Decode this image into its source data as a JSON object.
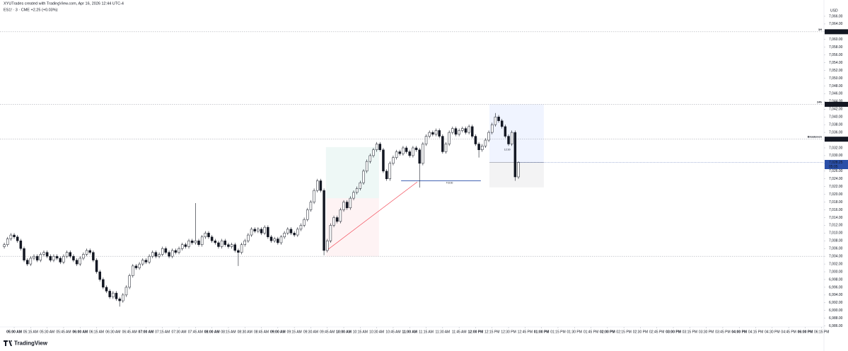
{
  "header": {
    "author_line": "XYUTrades created with TradingView.com, Apr 16, 2026 12:44 UTC-4",
    "symbol_line": "ES1! · 3 · CME  +2.25 (+0.03%)"
  },
  "footer": {
    "brand": "TradingView"
  },
  "chart_data": {
    "type": "candlestick",
    "currency": "USD",
    "colors": {
      "up": "#ffffff",
      "down": "#131722",
      "outline": "#131722",
      "current": "#2a4fa8",
      "level": "#131722"
    },
    "xlim": [
      -1.3,
      248.7
    ],
    "ylim": [
      6985.75,
      7070.2
    ],
    "yticks": [
      {
        "value": 7066,
        "label": "7,066.00"
      },
      {
        "value": 7064,
        "label": "7,064.00"
      },
      {
        "value": 7062,
        "label": "7,062.00"
      },
      {
        "value": 7060,
        "label": "7,060.00"
      },
      {
        "value": 7058,
        "label": "7,058.00"
      },
      {
        "value": 7056,
        "label": "7,056.00"
      },
      {
        "value": 7054,
        "label": "7,054.00"
      },
      {
        "value": 7052,
        "label": "7,052.00"
      },
      {
        "value": 7050,
        "label": "7,050.00"
      },
      {
        "value": 7048,
        "label": "7,048.00"
      },
      {
        "value": 7046,
        "label": "7,046.00"
      },
      {
        "value": 7044,
        "label": "7,044.00"
      },
      {
        "value": 7042,
        "label": "7,042.00"
      },
      {
        "value": 7040,
        "label": "7,040.00"
      },
      {
        "value": 7038,
        "label": "7,038.00"
      },
      {
        "value": 7036,
        "label": "7,036.00"
      },
      {
        "value": 7034,
        "label": "7,034.00"
      },
      {
        "value": 7032,
        "label": "7,032.00"
      },
      {
        "value": 7030,
        "label": "7,030.00"
      },
      {
        "value": 7028,
        "label": "7,028.00"
      },
      {
        "value": 7026,
        "label": "7,026.00"
      },
      {
        "value": 7024,
        "label": "7,024.00"
      },
      {
        "value": 7022,
        "label": "7,022.00"
      },
      {
        "value": 7020,
        "label": "7,020.00"
      },
      {
        "value": 7018,
        "label": "7,018.00"
      },
      {
        "value": 7016,
        "label": "7,016.00"
      },
      {
        "value": 7014,
        "label": "7,014.00"
      },
      {
        "value": 7012,
        "label": "7,012.00"
      },
      {
        "value": 7010,
        "label": "7,010.00"
      },
      {
        "value": 7008,
        "label": "7,008.00"
      },
      {
        "value": 7006,
        "label": "7,006.00"
      },
      {
        "value": 7004,
        "label": "7,004.00"
      },
      {
        "value": 7002,
        "label": "7,002.00"
      },
      {
        "value": 7000,
        "label": "7,000.00"
      },
      {
        "value": 6998,
        "label": "6,998.00"
      },
      {
        "value": 6996,
        "label": "6,996.00"
      },
      {
        "value": 6994,
        "label": "6,994.00"
      },
      {
        "value": 6992,
        "label": "6,992.00"
      },
      {
        "value": 6990,
        "label": "6,990.00"
      },
      {
        "value": 6988,
        "label": "6,988.00"
      },
      {
        "value": 6986,
        "label": "6,986.00"
      }
    ],
    "xticks": [
      {
        "value": 3,
        "label": "05:00 AM"
      },
      {
        "value": 8,
        "label": "05:15 AM"
      },
      {
        "value": 13,
        "label": "05:30 AM"
      },
      {
        "value": 18,
        "label": "05:45 AM"
      },
      {
        "value": 23,
        "label": "06:00 AM"
      },
      {
        "value": 28,
        "label": "06:15 AM"
      },
      {
        "value": 33,
        "label": "06:30 AM"
      },
      {
        "value": 38,
        "label": "06:45 AM"
      },
      {
        "value": 43,
        "label": "07:00 AM"
      },
      {
        "value": 48,
        "label": "07:15 AM"
      },
      {
        "value": 53,
        "label": "07:30 AM"
      },
      {
        "value": 58,
        "label": "07:45 AM"
      },
      {
        "value": 63,
        "label": "08:00 AM"
      },
      {
        "value": 68,
        "label": "08:15 AM"
      },
      {
        "value": 73,
        "label": "08:30 AM"
      },
      {
        "value": 78,
        "label": "08:45 AM"
      },
      {
        "value": 83,
        "label": "09:00 AM"
      },
      {
        "value": 88,
        "label": "09:15 AM"
      },
      {
        "value": 93,
        "label": "09:30 AM"
      },
      {
        "value": 98,
        "label": "09:45 AM"
      },
      {
        "value": 103,
        "label": "10:00 AM"
      },
      {
        "value": 108,
        "label": "10:15 AM"
      },
      {
        "value": 113,
        "label": "10:30 AM"
      },
      {
        "value": 118,
        "label": "10:45 AM"
      },
      {
        "value": 123,
        "label": "11:00 AM"
      },
      {
        "value": 128,
        "label": "11:15 AM"
      },
      {
        "value": 133,
        "label": "11:30 AM"
      },
      {
        "value": 138,
        "label": "11:45 AM"
      },
      {
        "value": 143,
        "label": "12:00 PM"
      },
      {
        "value": 148,
        "label": "12:15 PM"
      },
      {
        "value": 153,
        "label": "12:30 PM"
      },
      {
        "value": 158,
        "label": "12:45 PM"
      },
      {
        "value": 163,
        "label": "01:00 PM"
      },
      {
        "value": 168,
        "label": "01:15 PM"
      },
      {
        "value": 173,
        "label": "01:30 PM"
      },
      {
        "value": 178,
        "label": "01:45 PM"
      },
      {
        "value": 183,
        "label": "02:00 PM"
      },
      {
        "value": 188,
        "label": "02:15 PM"
      },
      {
        "value": 193,
        "label": "02:30 PM"
      },
      {
        "value": 198,
        "label": "02:45 PM"
      },
      {
        "value": 203,
        "label": "03:00 PM"
      },
      {
        "value": 208,
        "label": "03:15 PM"
      },
      {
        "value": 213,
        "label": "03:30 PM"
      },
      {
        "value": 218,
        "label": "03:45 PM"
      },
      {
        "value": 223,
        "label": "04:00 PM"
      },
      {
        "value": 228,
        "label": "04:15 PM"
      },
      {
        "value": 233,
        "label": "04:30 PM"
      },
      {
        "value": 238,
        "label": "04:45 PM"
      },
      {
        "value": 243,
        "label": "06:00 PM"
      },
      {
        "value": 248,
        "label": "06:15 PM"
      }
    ],
    "levels": [
      {
        "name": "1H",
        "value": 7062,
        "label": "7,062.00"
      },
      {
        "name": "24h",
        "value": 7043.25,
        "label": "7,043.25"
      },
      {
        "name": "Breakeven",
        "value": 7034.25,
        "label": "7,034.25"
      },
      {
        "value": 7004,
        "label": "7,004.00"
      }
    ],
    "current": {
      "value": 7028.25,
      "label": "7,028.25",
      "countdown": "05:05"
    },
    "positions": [
      {
        "start": 97.6,
        "end": 113.7,
        "entry": 7019,
        "target": 7032.2,
        "stop": 7004
      },
      {
        "start": 147.2,
        "end": 163.7,
        "entry": 7028.25,
        "target": 7043.25,
        "stop": 7021.8
      }
    ],
    "trendline": {
      "x": [
        97.8,
        125.3
      ],
      "y": [
        7005.5,
        7023.2
      ]
    },
    "hline": {
      "start": 120.4,
      "end": 144.6,
      "value": 7023.5,
      "label": "TCDD"
    },
    "note": {
      "x": 152.6,
      "y": 7031.5,
      "label": "12:30"
    },
    "candles": [
      [
        7006.5,
        7007.5,
        7006,
        7007
      ],
      [
        7007,
        7009,
        7006.5,
        7008.5
      ],
      [
        7008.5,
        7010,
        7008,
        7009.5
      ],
      [
        7009.5,
        7010,
        7008.5,
        7009
      ],
      [
        7009,
        7009.5,
        7007.5,
        7008
      ],
      [
        7008,
        7008.5,
        7005.5,
        7006
      ],
      [
        7006,
        7006.5,
        7002.5,
        7003
      ],
      [
        7003,
        7003.5,
        7001.5,
        7002
      ],
      [
        7002,
        7004,
        7001.5,
        7003.5
      ],
      [
        7003.5,
        7004.5,
        7003,
        7004
      ],
      [
        7004,
        7004.5,
        7002.5,
        7003
      ],
      [
        7003,
        7005,
        7002.5,
        7004.5
      ],
      [
        7004.5,
        7005.5,
        7004,
        7005
      ],
      [
        7005,
        7005.5,
        7003.5,
        7004
      ],
      [
        7004,
        7004.5,
        7002.5,
        7003
      ],
      [
        7003,
        7004.5,
        7002.5,
        7004
      ],
      [
        7004,
        7004.5,
        7003,
        7003.5
      ],
      [
        7003.5,
        7004,
        7002,
        7002.5
      ],
      [
        7002.5,
        7004.5,
        7002,
        7004
      ],
      [
        7004,
        7005.5,
        7003.5,
        7005
      ],
      [
        7005,
        7005.5,
        7003.5,
        7004
      ],
      [
        7004,
        7004.5,
        7002.5,
        7003
      ],
      [
        7003,
        7003.5,
        7001.5,
        7002
      ],
      [
        7002,
        7004,
        7001.5,
        7003.5
      ],
      [
        7003.5,
        7005,
        7003,
        7004.5
      ],
      [
        7004.5,
        7006,
        7004,
        7005.5
      ],
      [
        7005.5,
        7006,
        7004.5,
        7005
      ],
      [
        7005,
        7005.5,
        7002.5,
        7003
      ],
      [
        7003,
        7003.5,
        6999.5,
        7000
      ],
      [
        7000,
        7000.5,
        6997.5,
        6998
      ],
      [
        6998,
        6998.5,
        6995.5,
        6996
      ],
      [
        6996,
        6996.5,
        6994.5,
        6995
      ],
      [
        6995,
        6995.5,
        6993,
        6993.5
      ],
      [
        6993.5,
        6995,
        6993,
        6994.5
      ],
      [
        6994.5,
        6995,
        6992.5,
        6993
      ],
      [
        6993,
        6993.5,
        6991,
        6992.5
      ],
      [
        6992.5,
        6994.5,
        6992,
        6994
      ],
      [
        6994,
        6996.5,
        6993.5,
        6996
      ],
      [
        6996,
        6999.5,
        6995.5,
        6999
      ],
      [
        6999,
        7002,
        6998.5,
        7001.5
      ],
      [
        7001.5,
        7002,
        7000.5,
        7001
      ],
      [
        7001,
        7002.5,
        7000.5,
        7002
      ],
      [
        7002,
        7003.5,
        7001.5,
        7003
      ],
      [
        7003,
        7003.5,
        7002,
        7002.5
      ],
      [
        7002.5,
        7004.5,
        7002,
        7004
      ],
      [
        7004,
        7005.5,
        7003.5,
        7005
      ],
      [
        7005,
        7005.5,
        7003.5,
        7004
      ],
      [
        7004,
        7005,
        7003.5,
        7004.5
      ],
      [
        7004.5,
        7006.5,
        7004,
        7006
      ],
      [
        7006,
        7006.5,
        7004.5,
        7005
      ],
      [
        7005,
        7005.5,
        7003.5,
        7004
      ],
      [
        7004,
        7006,
        7003.5,
        7005.5
      ],
      [
        7005.5,
        7006,
        7004.5,
        7005
      ],
      [
        7005,
        7006.5,
        7004.5,
        7006
      ],
      [
        7006,
        7007.5,
        7005.5,
        7007
      ],
      [
        7007,
        7007.5,
        7006,
        7006.5
      ],
      [
        7006.5,
        7008.5,
        7006,
        7008
      ],
      [
        7008,
        7008.5,
        7007,
        7007.5
      ],
      [
        7007.5,
        7017.75,
        7007,
        7008
      ],
      [
        7008,
        7008.5,
        7006.5,
        7007
      ],
      [
        7007,
        7009.5,
        7006.5,
        7009
      ],
      [
        7009,
        7010.5,
        7008.5,
        7010
      ],
      [
        7010,
        7010.5,
        7008.5,
        7009
      ],
      [
        7009,
        7009.5,
        7007.5,
        7008
      ],
      [
        7008,
        7008.5,
        7007,
        7007.5
      ],
      [
        7007.5,
        7008,
        7006,
        7006.5
      ],
      [
        7006.5,
        7008.5,
        7006,
        7008
      ],
      [
        7008,
        7008.5,
        7006.5,
        7007
      ],
      [
        7007,
        7007.5,
        7006,
        7006.5
      ],
      [
        7006.5,
        7007.5,
        7006,
        7007
      ],
      [
        7007,
        7007.5,
        7005,
        7005.5
      ],
      [
        7005.5,
        7006,
        7001.5,
        7005
      ],
      [
        7005,
        7007.5,
        7004.5,
        7007
      ],
      [
        7007,
        7008.5,
        7006.5,
        7008
      ],
      [
        7008,
        7010,
        7007.5,
        7009.5
      ],
      [
        7009.5,
        7011.5,
        7009,
        7011
      ],
      [
        7011,
        7011.5,
        7010,
        7010.5
      ],
      [
        7010.5,
        7011.5,
        7010,
        7011
      ],
      [
        7011,
        7011.5,
        7009.5,
        7010
      ],
      [
        7010,
        7012,
        7009.5,
        7011.5
      ],
      [
        7011.5,
        7012,
        7008.5,
        7009
      ],
      [
        7009,
        7009.5,
        7007.5,
        7008
      ],
      [
        7008,
        7009,
        7007.5,
        7008.5
      ],
      [
        7008.5,
        7009,
        7007,
        7007.5
      ],
      [
        7007.5,
        7009.5,
        7007,
        7009
      ],
      [
        7009,
        7010.5,
        7008.5,
        7010
      ],
      [
        7010,
        7011.5,
        7009.5,
        7011
      ],
      [
        7011,
        7011.5,
        7009.5,
        7010
      ],
      [
        7010,
        7010.5,
        7009,
        7009.5
      ],
      [
        7009.5,
        7011.5,
        7009,
        7011
      ],
      [
        7011,
        7012.5,
        7010.5,
        7012
      ],
      [
        7012,
        7014,
        7011.5,
        7013.5
      ],
      [
        7013.5,
        7016.5,
        7013,
        7016
      ],
      [
        7016,
        7018.5,
        7015.5,
        7018
      ],
      [
        7018,
        7021.5,
        7017.5,
        7021
      ],
      [
        7021,
        7024,
        7020.5,
        7023.5
      ],
      [
        7023.5,
        7024,
        7020.5,
        7021
      ],
      [
        7021,
        7021.5,
        7004.25,
        7005.5
      ],
      [
        7005.5,
        7008.5,
        7005,
        7008
      ],
      [
        7008,
        7012.5,
        7007.5,
        7012
      ],
      [
        7012,
        7014.5,
        7011.5,
        7014
      ],
      [
        7014,
        7014.5,
        7012.5,
        7013
      ],
      [
        7013,
        7016.5,
        7012.5,
        7016
      ],
      [
        7016,
        7018.5,
        7015.5,
        7018
      ],
      [
        7018,
        7018.5,
        7016,
        7016.5
      ],
      [
        7016.5,
        7019.5,
        7016,
        7019
      ],
      [
        7019,
        7021,
        7018.5,
        7020.5
      ],
      [
        7020.5,
        7022,
        7020,
        7021.5
      ],
      [
        7021.5,
        7023.5,
        7021,
        7023
      ],
      [
        7023,
        7026.5,
        7022.5,
        7026
      ],
      [
        7026,
        7029,
        7025.5,
        7028.5
      ],
      [
        7028.5,
        7030.5,
        7028,
        7030
      ],
      [
        7030,
        7032,
        7029.5,
        7031.5
      ],
      [
        7031.5,
        7033.5,
        7031,
        7033
      ],
      [
        7033,
        7033.5,
        7031,
        7031.5
      ],
      [
        7031.5,
        7032,
        7025.5,
        7026
      ],
      [
        7026,
        7026.5,
        7023.5,
        7024
      ],
      [
        7024,
        7028.5,
        7023.5,
        7028
      ],
      [
        7028,
        7030,
        7027.5,
        7029.5
      ],
      [
        7029.5,
        7031.5,
        7029,
        7031
      ],
      [
        7031,
        7031.5,
        7030,
        7030.5
      ],
      [
        7030.5,
        7032.5,
        7030,
        7032
      ],
      [
        7032,
        7032.5,
        7030.5,
        7031
      ],
      [
        7031,
        7031.5,
        7029.5,
        7030
      ],
      [
        7030,
        7032.5,
        7029.5,
        7032
      ],
      [
        7032,
        7032.5,
        7031,
        7031.5
      ],
      [
        7031.5,
        7032,
        7021.75,
        7028
      ],
      [
        7028,
        7033.5,
        7027.5,
        7033
      ],
      [
        7033,
        7035.5,
        7032.5,
        7035
      ],
      [
        7035,
        7036.5,
        7034.5,
        7036
      ],
      [
        7036,
        7036.5,
        7035,
        7035.5
      ],
      [
        7035.5,
        7037,
        7035,
        7036.5
      ],
      [
        7036.5,
        7037,
        7034.5,
        7035
      ],
      [
        7035,
        7035.5,
        7030.5,
        7031
      ],
      [
        7031,
        7033.5,
        7030.5,
        7033
      ],
      [
        7033,
        7036.5,
        7032.5,
        7036
      ],
      [
        7036,
        7037.5,
        7035.5,
        7037
      ],
      [
        7037,
        7037.5,
        7035,
        7035.5
      ],
      [
        7035.5,
        7037,
        7035,
        7036.5
      ],
      [
        7036.5,
        7037.5,
        7036,
        7037
      ],
      [
        7037,
        7037.5,
        7035.5,
        7036
      ],
      [
        7036,
        7038,
        7035.5,
        7037.5
      ],
      [
        7037.5,
        7038,
        7034.5,
        7035
      ],
      [
        7035,
        7035.5,
        7032.5,
        7033
      ],
      [
        7033,
        7033.5,
        7029.5,
        7031.5
      ],
      [
        7031.5,
        7033,
        7031,
        7032.5
      ],
      [
        7032.5,
        7034.5,
        7032,
        7034
      ],
      [
        7034,
        7036.5,
        7033.5,
        7036
      ],
      [
        7036,
        7038.5,
        7035.5,
        7038
      ],
      [
        7038,
        7041,
        7037.5,
        7040
      ],
      [
        7040,
        7040.5,
        7038.5,
        7039
      ],
      [
        7039,
        7039.5,
        7037,
        7037.5
      ],
      [
        7037.5,
        7038,
        7034.5,
        7035
      ],
      [
        7035,
        7035.5,
        7032.5,
        7033
      ],
      [
        7033,
        7036.5,
        7032.5,
        7036
      ],
      [
        7036,
        7036.5,
        7023.5,
        7024.5
      ],
      [
        7024.5,
        7028.5,
        7024,
        7028.25
      ]
    ]
  }
}
